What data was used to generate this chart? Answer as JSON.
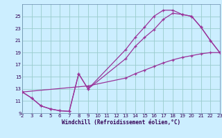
{
  "xlabel": "Windchill (Refroidissement éolien,°C)",
  "bg_color": "#cceeff",
  "grid_color": "#99cccc",
  "line_color": "#993399",
  "xlim": [
    2,
    23
  ],
  "ylim": [
    9,
    27
  ],
  "xticks": [
    2,
    3,
    4,
    5,
    6,
    7,
    8,
    9,
    10,
    11,
    12,
    13,
    14,
    15,
    16,
    17,
    18,
    19,
    20,
    21,
    22,
    23
  ],
  "yticks": [
    9,
    11,
    13,
    15,
    17,
    19,
    21,
    23,
    25
  ],
  "curve1_x": [
    2,
    3,
    4,
    5,
    6,
    7,
    8,
    9,
    13,
    14,
    15,
    16,
    17,
    18,
    19,
    20,
    21,
    22,
    23
  ],
  "curve1_y": [
    12.5,
    11.5,
    10.2,
    9.7,
    9.4,
    9.3,
    15.5,
    13.0,
    19.5,
    21.5,
    23.2,
    25.0,
    26.0,
    26.0,
    25.3,
    25.0,
    23.2,
    21.0,
    19.0
  ],
  "curve2_x": [
    2,
    3,
    4,
    5,
    6,
    7,
    8,
    9,
    13,
    14,
    15,
    16,
    17,
    18,
    19,
    20,
    21,
    22,
    23
  ],
  "curve2_y": [
    12.5,
    11.5,
    10.2,
    9.7,
    9.4,
    9.3,
    15.5,
    13.0,
    18.0,
    20.0,
    21.5,
    22.8,
    24.5,
    25.5,
    25.3,
    25.0,
    23.2,
    21.0,
    19.0
  ],
  "curve3_x": [
    2,
    9,
    13,
    14,
    15,
    16,
    17,
    18,
    19,
    20,
    21,
    22,
    23
  ],
  "curve3_y": [
    12.5,
    13.5,
    14.8,
    15.5,
    16.1,
    16.7,
    17.3,
    17.8,
    18.2,
    18.5,
    18.8,
    19.0,
    19.0
  ]
}
